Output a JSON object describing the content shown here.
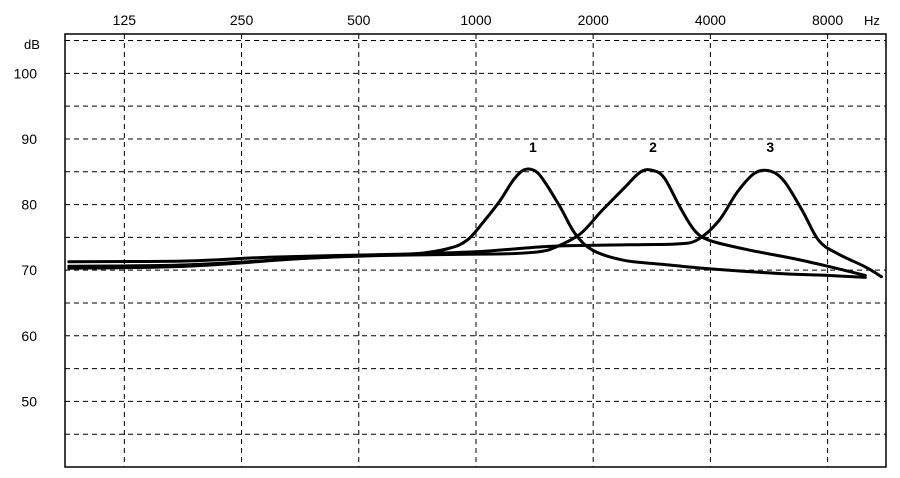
{
  "chart_data": {
    "type": "line",
    "x_unit": "Hz",
    "y_unit": "dB",
    "x_scale": "log2",
    "xlim": [
      88,
      11300
    ],
    "ylim": [
      40,
      106
    ],
    "x_ticks": [
      {
        "value": 125,
        "label": "125"
      },
      {
        "value": 250,
        "label": "250"
      },
      {
        "value": 500,
        "label": "500"
      },
      {
        "value": 1000,
        "label": "1000"
      },
      {
        "value": 2000,
        "label": "2000"
      },
      {
        "value": 4000,
        "label": "4000"
      },
      {
        "value": 8000,
        "label": "8000"
      }
    ],
    "y_ticks": [
      {
        "value": 50,
        "label": "50"
      },
      {
        "value": 60,
        "label": "60"
      },
      {
        "value": 70,
        "label": "70"
      },
      {
        "value": 80,
        "label": "80"
      },
      {
        "value": 90,
        "label": "90"
      },
      {
        "value": 100,
        "label": "100"
      }
    ],
    "y_grid_minor": [
      45,
      55,
      65,
      75,
      85,
      95,
      105
    ],
    "grid": true,
    "series": [
      {
        "label": "1",
        "label_at": {
          "x": 1400,
          "y": 88
        },
        "points": [
          [
            90,
            70.3
          ],
          [
            180,
            70.6
          ],
          [
            360,
            71.8
          ],
          [
            540,
            72.3
          ],
          [
            700,
            72.5
          ],
          [
            850,
            73.3
          ],
          [
            950,
            74.6
          ],
          [
            1050,
            77.5
          ],
          [
            1150,
            80.5
          ],
          [
            1250,
            83.8
          ],
          [
            1330,
            85.3
          ],
          [
            1420,
            85.1
          ],
          [
            1500,
            83.5
          ],
          [
            1650,
            79.5
          ],
          [
            1800,
            75.5
          ],
          [
            2000,
            73.0
          ],
          [
            2400,
            71.5
          ],
          [
            3000,
            70.9
          ],
          [
            4000,
            70.2
          ],
          [
            6000,
            69.5
          ],
          [
            8000,
            69.2
          ],
          [
            10000,
            68.9
          ]
        ]
      },
      {
        "label": "2",
        "label_at": {
          "x": 2850,
          "y": 88
        },
        "points": [
          [
            90,
            70.6
          ],
          [
            180,
            70.8
          ],
          [
            360,
            71.8
          ],
          [
            540,
            72.2
          ],
          [
            900,
            72.4
          ],
          [
            1200,
            72.5
          ],
          [
            1450,
            72.8
          ],
          [
            1600,
            73.5
          ],
          [
            1850,
            75.5
          ],
          [
            2100,
            79.0
          ],
          [
            2400,
            82.5
          ],
          [
            2650,
            85.0
          ],
          [
            2850,
            85.2
          ],
          [
            3050,
            84.0
          ],
          [
            3350,
            79.5
          ],
          [
            3650,
            76.0
          ],
          [
            4000,
            74.5
          ],
          [
            5000,
            73.1
          ],
          [
            6500,
            71.8
          ],
          [
            8000,
            70.6
          ],
          [
            10000,
            69.2
          ]
        ]
      },
      {
        "label": "3",
        "label_at": {
          "x": 5700,
          "y": 88
        },
        "points": [
          [
            90,
            71.3
          ],
          [
            180,
            71.4
          ],
          [
            300,
            72.0
          ],
          [
            600,
            72.4
          ],
          [
            1000,
            72.8
          ],
          [
            1500,
            73.6
          ],
          [
            2000,
            73.8
          ],
          [
            2700,
            73.9
          ],
          [
            3300,
            74.0
          ],
          [
            3700,
            74.6
          ],
          [
            4200,
            77.5
          ],
          [
            4700,
            82.0
          ],
          [
            5200,
            84.8
          ],
          [
            5700,
            85.1
          ],
          [
            6200,
            83.5
          ],
          [
            6900,
            79.0
          ],
          [
            7600,
            74.5
          ],
          [
            8500,
            72.5
          ],
          [
            10000,
            70.5
          ],
          [
            11000,
            69.0
          ]
        ]
      }
    ]
  }
}
